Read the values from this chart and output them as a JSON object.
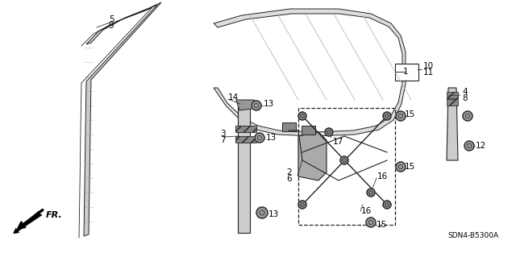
{
  "bg_color": "#ffffff",
  "diagram_code": "SDN4-B5300A",
  "fig_width": 6.4,
  "fig_height": 3.19,
  "dpi": 100,
  "line_color": "#222222",
  "part_color": "#555555",
  "light_gray": "#aaaaaa",
  "dark_gray": "#666666"
}
